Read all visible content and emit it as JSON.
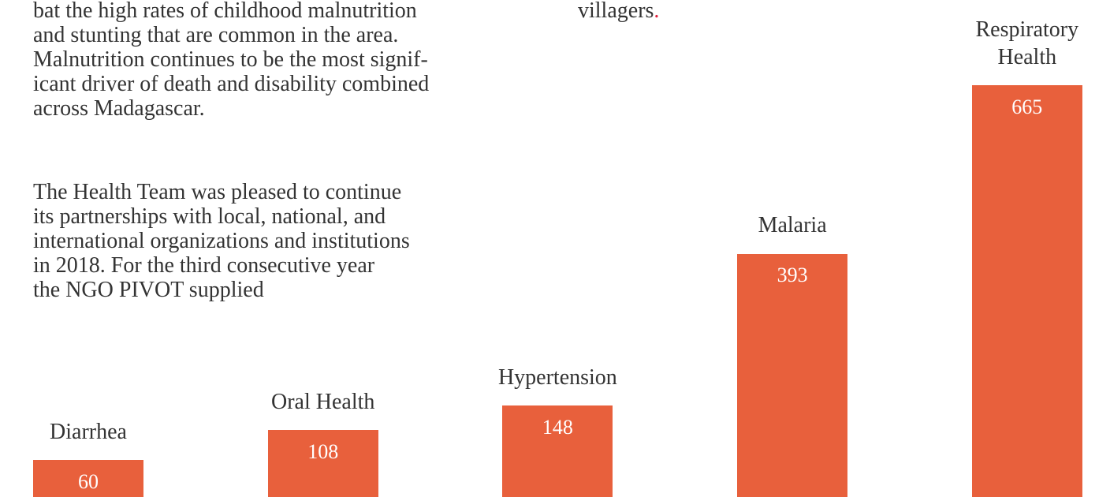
{
  "paragraphs": [
    [
      "bat the high rates of childhood malnutrition",
      "and stunting that are common in the area.",
      "Malnutrition continues to be the most signif-",
      "icant driver of death and disability combined",
      "across Madagascar."
    ],
    [
      "The Health Team was pleased to continue",
      "its partnerships with local, national, and",
      "international organizations and institutions",
      "in 2018. For the third consecutive year",
      "the NGO PIVOT supplied"
    ]
  ],
  "right_text": {
    "text": "villagers",
    "end": "."
  },
  "chart_data": {
    "type": "bar",
    "categories": [
      "Diarrhea",
      "Oral Health",
      "Hypertension",
      "Malaria",
      "Respiratory Health"
    ],
    "values": [
      60,
      108,
      148,
      393,
      665
    ],
    "color": "#e8603c"
  }
}
